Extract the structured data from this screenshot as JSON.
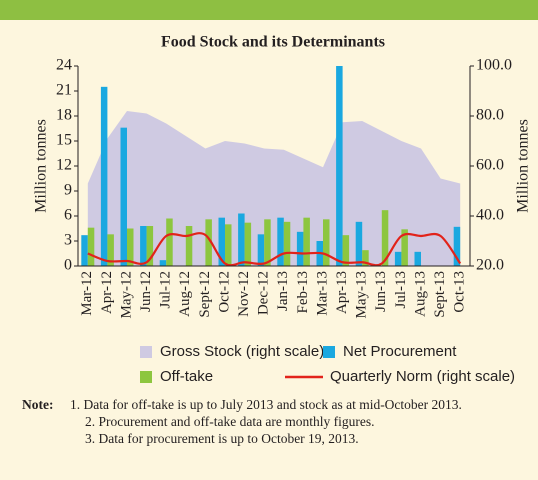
{
  "chart_data": {
    "type": "bar_area_line",
    "title": "Food Stock and its Determinants",
    "y_label": "Million tonnes",
    "y2_label": "Million tonnes",
    "categories": [
      "Mar-12",
      "Apr-12",
      "May-12",
      "Jun-12",
      "Jul-12",
      "Aug-12",
      "Sept-12",
      "Oct-12",
      "Nov-12",
      "Dec-12",
      "Jan-13",
      "Feb-13",
      "Mar-13",
      "Apr-13",
      "May-13",
      "Jun-13",
      "Jul-13",
      "Aug-13",
      "Sept-13",
      "Oct-13"
    ],
    "ylim": [
      0,
      24
    ],
    "yticks": [
      0,
      3,
      6,
      9,
      12,
      15,
      18,
      21,
      24
    ],
    "y2lim": [
      20,
      100
    ],
    "y2ticks": [
      {
        "value": 20,
        "label": "20.0"
      },
      {
        "value": 40,
        "label": "40.0"
      },
      {
        "value": 60,
        "label": "60.0"
      },
      {
        "value": 80,
        "label": "80.0"
      },
      {
        "value": 100,
        "label": "100.0"
      }
    ],
    "grid": false,
    "series": [
      {
        "name": "Gross Stock (right scale)",
        "kind": "area",
        "axis": "y2",
        "color": "#cfcae2",
        "values": [
          53,
          71,
          82,
          81,
          77,
          72,
          67,
          70,
          69,
          67,
          66.5,
          63,
          59.5,
          77.5,
          78,
          74,
          70,
          67,
          55,
          53
        ]
      },
      {
        "name": "Net Procurement",
        "kind": "bar",
        "color": "#1aa8e0",
        "values": [
          3.7,
          21.5,
          16.6,
          4.8,
          0.7,
          0,
          0,
          5.8,
          6.3,
          3.8,
          5.8,
          4.1,
          3.0,
          24.0,
          5.3,
          0,
          1.7,
          1.7,
          0,
          4.7
        ]
      },
      {
        "name": "Off-take",
        "kind": "bar",
        "color": "#8dc63f",
        "values": [
          4.6,
          3.8,
          4.5,
          4.8,
          5.7,
          4.8,
          5.6,
          5.0,
          5.2,
          5.6,
          5.3,
          5.8,
          5.6,
          3.7,
          1.9,
          6.7,
          4.4,
          null,
          null,
          null
        ]
      },
      {
        "name": "Quarterly Norm (right scale)",
        "kind": "line",
        "axis": "y2",
        "color": "#e2231a",
        "values": [
          25,
          22,
          22,
          21.5,
          32,
          32,
          32.4,
          21,
          21.5,
          21,
          25,
          25,
          25,
          21.5,
          21.5,
          21,
          32,
          32,
          32,
          21
        ]
      }
    ],
    "notes_label": "Note:",
    "notes": [
      "1. Data for off-take is up to July 2013 and stock as at mid-October 2013.",
      "2. Procurement and off-take data are monthly figures.",
      "3. Data for procurement  is up to October 19, 2013."
    ]
  }
}
